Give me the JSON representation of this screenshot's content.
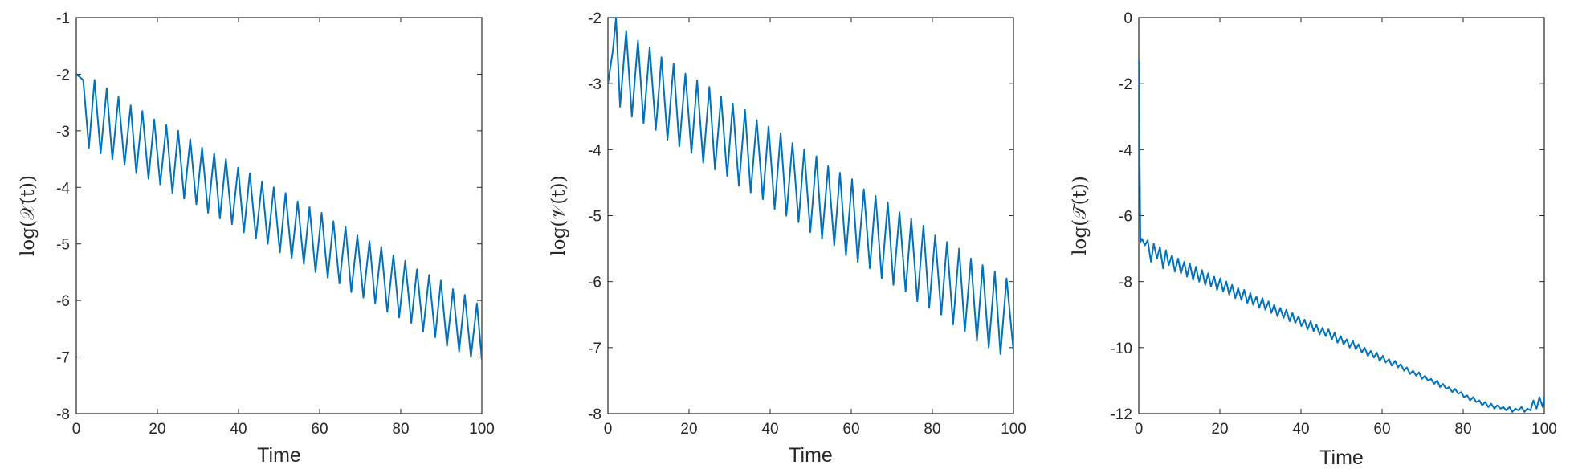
{
  "colors": {
    "series": "#0072BD",
    "axes": "#262626",
    "background": "#ffffff"
  },
  "chart_data": [
    {
      "type": "line",
      "xlabel": "Time",
      "ylabel": "log(𝒳(t))",
      "xlim": [
        0,
        100
      ],
      "ylim": [
        -8,
        -1
      ],
      "xticks": [
        "0",
        "20",
        "40",
        "60",
        "80",
        "100"
      ],
      "yticks": [
        "-8",
        "-7",
        "-6",
        "-5",
        "-4",
        "-3",
        "-2",
        "-1"
      ],
      "grid": false,
      "series": [
        {
          "color": "#0072BD",
          "x": [
            0,
            1.7,
            3.1,
            4.5,
            6.0,
            7.5,
            8.9,
            10.4,
            11.9,
            13.4,
            14.8,
            16.3,
            17.8,
            19.2,
            20.7,
            22.2,
            23.7,
            25.1,
            26.6,
            28.1,
            29.6,
            31.0,
            32.5,
            34.0,
            35.4,
            36.9,
            38.4,
            39.9,
            41.3,
            42.8,
            44.3,
            45.8,
            47.2,
            48.7,
            50.2,
            51.6,
            53.1,
            54.6,
            56.1,
            57.5,
            59.0,
            60.5,
            62.0,
            63.4,
            64.9,
            66.4,
            67.8,
            69.3,
            70.8,
            72.3,
            73.7,
            75.2,
            76.7,
            78.2,
            79.6,
            81.1,
            82.6,
            84.0,
            85.5,
            87.0,
            88.5,
            89.9,
            91.4,
            92.9,
            94.4,
            95.8,
            97.3,
            98.8,
            100
          ],
          "y": [
            -2.0,
            -2.1,
            -3.3,
            -2.1,
            -3.4,
            -2.25,
            -3.5,
            -2.4,
            -3.6,
            -2.55,
            -3.75,
            -2.65,
            -3.85,
            -2.8,
            -3.95,
            -2.9,
            -4.1,
            -3.0,
            -4.2,
            -3.15,
            -4.3,
            -3.3,
            -4.45,
            -3.4,
            -4.55,
            -3.5,
            -4.65,
            -3.65,
            -4.8,
            -3.75,
            -4.9,
            -3.9,
            -5.0,
            -4.0,
            -5.15,
            -4.1,
            -5.25,
            -4.25,
            -5.35,
            -4.35,
            -5.5,
            -4.45,
            -5.6,
            -4.6,
            -5.7,
            -4.7,
            -5.85,
            -4.85,
            -5.95,
            -4.95,
            -6.05,
            -5.05,
            -6.2,
            -5.2,
            -6.3,
            -5.3,
            -6.4,
            -5.45,
            -6.55,
            -5.55,
            -6.65,
            -5.65,
            -6.8,
            -5.8,
            -6.9,
            -5.9,
            -7.0,
            -6.05,
            -7.05
          ]
        }
      ]
    },
    {
      "type": "line",
      "xlabel": "Time",
      "ylabel": "log(𝒱(t))",
      "xlim": [
        0,
        100
      ],
      "ylim": [
        -8,
        -2
      ],
      "xticks": [
        "0",
        "20",
        "40",
        "60",
        "80",
        "100"
      ],
      "yticks": [
        "-8",
        "-7",
        "-6",
        "-5",
        "-4",
        "-3",
        "-2"
      ],
      "grid": false,
      "series": [
        {
          "color": "#0072BD",
          "x": [
            0,
            1.2,
            2.0,
            3.0,
            4.5,
            5.9,
            7.4,
            8.8,
            10.3,
            11.8,
            13.2,
            14.7,
            16.2,
            17.6,
            19.1,
            20.6,
            22.0,
            23.5,
            25.0,
            26.4,
            27.9,
            29.4,
            30.8,
            32.3,
            33.8,
            35.2,
            36.7,
            38.2,
            39.6,
            41.1,
            42.6,
            44.0,
            45.5,
            47.0,
            48.4,
            49.9,
            51.4,
            52.8,
            54.3,
            55.8,
            57.2,
            58.7,
            60.2,
            61.6,
            63.1,
            64.6,
            66.0,
            67.5,
            69.0,
            70.4,
            71.9,
            73.4,
            74.8,
            76.3,
            77.8,
            79.2,
            80.7,
            82.2,
            83.6,
            85.1,
            86.6,
            88.0,
            89.5,
            91.0,
            92.4,
            93.9,
            95.4,
            96.8,
            98.3,
            100
          ],
          "y": [
            -3.0,
            -2.5,
            -2.0,
            -3.35,
            -2.2,
            -3.5,
            -2.35,
            -3.6,
            -2.45,
            -3.7,
            -2.6,
            -3.85,
            -2.7,
            -3.95,
            -2.85,
            -4.05,
            -2.95,
            -4.2,
            -3.05,
            -4.3,
            -3.2,
            -4.4,
            -3.3,
            -4.55,
            -3.4,
            -4.65,
            -3.55,
            -4.75,
            -3.65,
            -4.9,
            -3.75,
            -5.0,
            -3.9,
            -5.1,
            -4.0,
            -5.25,
            -4.1,
            -5.35,
            -4.25,
            -5.45,
            -4.35,
            -5.6,
            -4.45,
            -5.7,
            -4.6,
            -5.8,
            -4.7,
            -5.95,
            -4.8,
            -6.05,
            -4.95,
            -6.15,
            -5.05,
            -6.3,
            -5.15,
            -6.4,
            -5.3,
            -6.5,
            -5.4,
            -6.65,
            -5.5,
            -6.75,
            -5.65,
            -6.9,
            -5.75,
            -7.0,
            -5.85,
            -7.1,
            -5.95,
            -7.05
          ]
        }
      ]
    },
    {
      "type": "line",
      "xlabel": "Time",
      "ylabel": "log(𝒯(t))",
      "xlim": [
        0,
        100
      ],
      "ylim": [
        -12,
        0
      ],
      "xticks": [
        "0",
        "20",
        "40",
        "60",
        "80",
        "100"
      ],
      "yticks": [
        "-12",
        "-10",
        "-8",
        "-6",
        "-4",
        "-2",
        "0"
      ],
      "grid": false,
      "series": [
        {
          "color": "#0072BD",
          "x": [
            0,
            0.4,
            0.8,
            1.5,
            2.2,
            3.0,
            3.7,
            4.5,
            5.2,
            6.0,
            6.7,
            7.4,
            8.2,
            8.9,
            9.7,
            10.4,
            11.2,
            11.9,
            12.6,
            13.4,
            14.1,
            14.9,
            15.6,
            16.4,
            17.1,
            17.8,
            18.6,
            19.3,
            20.1,
            20.8,
            21.6,
            22.3,
            23.0,
            23.8,
            24.5,
            25.3,
            26.0,
            26.8,
            27.5,
            28.2,
            29.0,
            29.7,
            30.5,
            31.2,
            32.0,
            32.7,
            33.4,
            34.2,
            34.9,
            35.7,
            36.4,
            37.2,
            37.9,
            38.6,
            39.4,
            40.1,
            40.9,
            41.6,
            42.4,
            43.1,
            43.8,
            44.6,
            45.3,
            46.1,
            46.8,
            47.6,
            48.3,
            49.0,
            49.8,
            50.5,
            51.3,
            52.0,
            52.8,
            53.5,
            54.2,
            55.0,
            55.7,
            56.5,
            57.2,
            58.0,
            58.7,
            59.4,
            60.2,
            60.9,
            61.7,
            62.4,
            63.2,
            63.9,
            64.6,
            65.4,
            66.1,
            66.9,
            67.6,
            68.4,
            69.1,
            69.8,
            70.6,
            71.3,
            72.1,
            72.8,
            73.6,
            74.3,
            75.0,
            75.8,
            76.5,
            77.3,
            78.0,
            78.8,
            79.5,
            80.2,
            81.0,
            81.7,
            82.5,
            83.2,
            84.0,
            84.7,
            85.4,
            86.2,
            86.9,
            87.7,
            88.4,
            89.2,
            89.9,
            90.6,
            91.4,
            92.1,
            92.9,
            93.6,
            94.4,
            95.1,
            95.8,
            96.6,
            97.3,
            98.1,
            98.8,
            99.6,
            100
          ],
          "y": [
            -1.3,
            -6.8,
            -6.7,
            -6.9,
            -6.75,
            -7.4,
            -6.85,
            -7.3,
            -6.95,
            -7.6,
            -7.05,
            -7.5,
            -7.2,
            -7.7,
            -7.3,
            -7.75,
            -7.4,
            -7.85,
            -7.45,
            -7.95,
            -7.55,
            -8.0,
            -7.65,
            -8.1,
            -7.75,
            -8.15,
            -7.85,
            -8.25,
            -7.9,
            -8.3,
            -8.0,
            -8.4,
            -8.1,
            -8.5,
            -8.2,
            -8.55,
            -8.25,
            -8.65,
            -8.35,
            -8.7,
            -8.45,
            -8.8,
            -8.5,
            -8.85,
            -8.6,
            -8.95,
            -8.7,
            -9.05,
            -8.8,
            -9.1,
            -8.85,
            -9.2,
            -8.95,
            -9.25,
            -9.05,
            -9.35,
            -9.15,
            -9.45,
            -9.2,
            -9.5,
            -9.3,
            -9.6,
            -9.4,
            -9.65,
            -9.45,
            -9.75,
            -9.55,
            -9.85,
            -9.65,
            -9.9,
            -9.75,
            -10.0,
            -9.8,
            -10.05,
            -9.9,
            -10.15,
            -10.0,
            -10.25,
            -10.1,
            -10.3,
            -10.15,
            -10.4,
            -10.25,
            -10.45,
            -10.35,
            -10.55,
            -10.4,
            -10.6,
            -10.5,
            -10.7,
            -10.6,
            -10.8,
            -10.7,
            -10.85,
            -10.75,
            -10.95,
            -10.85,
            -11.0,
            -10.95,
            -11.1,
            -11.0,
            -11.2,
            -11.1,
            -11.25,
            -11.2,
            -11.35,
            -11.25,
            -11.4,
            -11.35,
            -11.5,
            -11.45,
            -11.6,
            -11.5,
            -11.65,
            -11.6,
            -11.75,
            -11.65,
            -11.8,
            -11.7,
            -11.85,
            -11.75,
            -11.85,
            -11.8,
            -11.9,
            -11.8,
            -11.95,
            -11.85,
            -11.9,
            -11.8,
            -11.95,
            -11.85,
            -11.9,
            -11.6,
            -11.85,
            -11.5,
            -11.8,
            -11.5
          ]
        }
      ]
    }
  ]
}
